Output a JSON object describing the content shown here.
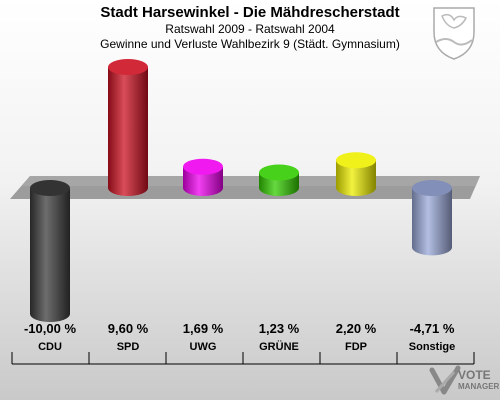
{
  "header": {
    "title": "Stadt Harsewinkel - Die Mähdrescherstadt",
    "subtitle": "Ratswahl 2009 - Ratswahl 2004",
    "description": "Gewinne und Verluste Wahlbezirk 9 (Städt. Gymnasium)"
  },
  "watermark": {
    "line1": "VOTE",
    "line2": "MANAGER"
  },
  "chart_data": {
    "type": "bar",
    "categories": [
      "CDU",
      "SPD",
      "UWG",
      "GRÜNE",
      "FDP",
      "Sonstige"
    ],
    "values": [
      -10.0,
      9.6,
      1.69,
      1.23,
      2.2,
      -4.71
    ],
    "value_labels": [
      "-10,00 %",
      "9,60 %",
      "1,69 %",
      "1,23 %",
      "2,20 %",
      "-4,71 %"
    ],
    "colors": [
      "#3c3c3c",
      "#cc1122",
      "#ee00ee",
      "#33cc00",
      "#eeee00",
      "#99a8d8"
    ],
    "title": "Stadt Harsewinkel - Die Mähdrescherstadt",
    "ylim": [
      -11,
      11
    ]
  }
}
